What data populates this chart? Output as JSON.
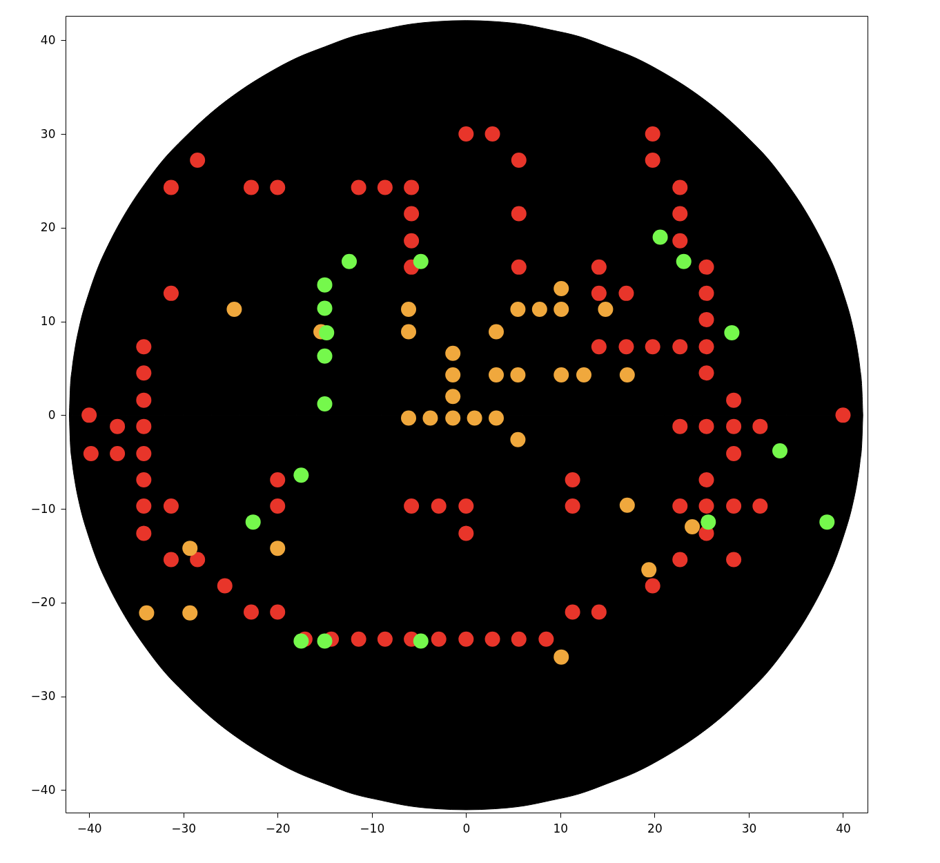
{
  "chart_data": {
    "type": "scatter",
    "marker": "circle",
    "xlim": [
      -42.5,
      42.6
    ],
    "ylim": [
      -42.4,
      42.6
    ],
    "xticks": [
      {
        "value": -40,
        "label": "−40"
      },
      {
        "value": -30,
        "label": "−30"
      },
      {
        "value": -20,
        "label": "−20"
      },
      {
        "value": -10,
        "label": "−10"
      },
      0,
      10,
      20,
      30,
      40
    ],
    "yticks": [
      {
        "value": -40,
        "label": "−40"
      },
      {
        "value": -30,
        "label": "−30"
      },
      {
        "value": -20,
        "label": "−20"
      },
      {
        "value": -10,
        "label": "−10"
      },
      0,
      10,
      20,
      30,
      40
    ],
    "series": [
      {
        "type": "area",
        "marker": "none",
        "color": "#000000",
        "x": [
          -42.1,
          -42.0,
          -41.8,
          -41.5,
          -41,
          -40,
          -39,
          -38,
          -36,
          -34,
          -32,
          -30,
          -27,
          -24,
          -21,
          -18,
          -15,
          -12,
          -9,
          -6,
          -3,
          0,
          3,
          6,
          9,
          12,
          15,
          18,
          21,
          24,
          27,
          30,
          32,
          34,
          36,
          38,
          39,
          40,
          41,
          41.5,
          41.8,
          42.0,
          42.1
        ],
        "values": [
          0,
          2.9,
          5.0,
          7.1,
          9.6,
          13.1,
          15.9,
          18.1,
          21.8,
          24.8,
          27.4,
          29.5,
          32.3,
          34.6,
          36.5,
          38.1,
          39.3,
          40.4,
          41.1,
          41.7,
          42.0,
          42.1,
          42.0,
          41.7,
          41.1,
          40.4,
          39.3,
          38.1,
          36.5,
          34.6,
          32.3,
          29.5,
          27.4,
          24.8,
          21.8,
          18.1,
          15.9,
          13.1,
          9.6,
          7.1,
          5.0,
          2.9,
          0
        ]
      },
      {
        "type": "area",
        "marker": "none",
        "color": "#000000",
        "x": [
          -42.1,
          -42.0,
          -41.8,
          -41.5,
          -41,
          -40,
          -39,
          -38,
          -36,
          -34,
          -32,
          -30,
          -27,
          -24,
          -21,
          -18,
          -15,
          -12,
          -9,
          -6,
          -3,
          0,
          3,
          6,
          9,
          12,
          15,
          18,
          21,
          24,
          27,
          30,
          32,
          34,
          36,
          38,
          39,
          40,
          41,
          41.5,
          41.8,
          42.0,
          42.1
        ],
        "values": [
          0,
          -2.9,
          -5.0,
          -7.1,
          -9.6,
          -13.1,
          -15.9,
          -18.1,
          -21.8,
          -24.8,
          -27.4,
          -29.5,
          -32.3,
          -34.6,
          -36.5,
          -38.1,
          -39.3,
          -40.4,
          -41.1,
          -41.7,
          -42.0,
          -42.1,
          -42.0,
          -41.7,
          -41.1,
          -40.4,
          -39.3,
          -38.1,
          -36.5,
          -34.6,
          -32.3,
          -29.5,
          -27.4,
          -24.8,
          -21.8,
          -18.1,
          -15.9,
          -13.1,
          -9.6,
          -7.1,
          -5.0,
          -2.9,
          0
        ]
      },
      {
        "color": "#e8352a",
        "x": [
          0,
          2.8,
          19.8,
          -28.5,
          5.6,
          19.8,
          -31.3,
          -22.8,
          -20.0,
          -11.4,
          -8.6,
          -5.8,
          22.7,
          -5.8,
          5.6,
          22.7,
          -5.8,
          22.7,
          -5.8,
          5.6,
          14.1,
          25.5,
          -31.3,
          14.1,
          17.0,
          25.5,
          25.5,
          -34.2,
          14.1,
          17.0,
          19.8,
          22.7,
          25.5,
          -34.2,
          25.5,
          -34.2,
          28.4,
          -40,
          40,
          -37.0,
          -34.2,
          22.7,
          25.5,
          28.4,
          31.2,
          -39.8,
          -37.0,
          -34.2,
          28.4,
          -34.2,
          -20.0,
          11.3,
          25.5,
          -34.2,
          -31.3,
          -20.0,
          -5.8,
          -2.9,
          0,
          11.3,
          22.7,
          25.5,
          28.4,
          31.2,
          -34.2,
          0,
          25.5,
          -31.3,
          -28.5,
          22.7,
          28.4,
          -25.6,
          19.8,
          -22.8,
          -20.0,
          11.3,
          14.1,
          -17.1,
          -14.3,
          -11.4,
          -8.6,
          -5.8,
          -2.9,
          0,
          2.8,
          5.6,
          8.5
        ],
        "values": [
          30,
          30,
          30,
          27.2,
          27.2,
          27.2,
          24.3,
          24.3,
          24.3,
          24.3,
          24.3,
          24.3,
          24.3,
          21.5,
          21.5,
          21.5,
          18.6,
          18.6,
          15.8,
          15.8,
          15.8,
          15.8,
          13.0,
          13.0,
          13.0,
          13.0,
          10.2,
          7.3,
          7.3,
          7.3,
          7.3,
          7.3,
          7.3,
          4.5,
          4.5,
          1.6,
          1.6,
          0,
          0,
          -1.2,
          -1.2,
          -1.2,
          -1.2,
          -1.2,
          -1.2,
          -4.1,
          -4.1,
          -4.1,
          -4.1,
          -6.9,
          -6.9,
          -6.9,
          -6.9,
          -9.7,
          -9.7,
          -9.7,
          -9.7,
          -9.7,
          -9.7,
          -9.7,
          -9.7,
          -9.7,
          -9.7,
          -9.7,
          -12.6,
          -12.6,
          -12.6,
          -15.4,
          -15.4,
          -15.4,
          -15.4,
          -18.2,
          -18.2,
          -21.0,
          -21.0,
          -21.0,
          -21.0,
          -23.9,
          -23.9,
          -23.9,
          -23.9,
          -23.9,
          -23.9,
          -23.9,
          -23.9,
          -23.9,
          -23.9
        ]
      },
      {
        "color": "#f0a83d",
        "x": [
          -24.6,
          -15.4,
          -6.1,
          -6.1,
          5.5,
          7.8,
          10.1,
          14.8,
          10.1,
          3.2,
          -1.4,
          -1.4,
          3.2,
          5.5,
          10.1,
          12.5,
          17.1,
          -1.4,
          -6.1,
          -3.8,
          -1.4,
          0.9,
          3.2,
          5.5,
          17.1,
          24.0,
          19.4,
          -29.3,
          -20.0,
          -33.9,
          -29.3,
          10.1
        ],
        "values": [
          11.3,
          8.9,
          11.3,
          8.9,
          11.3,
          11.3,
          11.3,
          11.3,
          13.5,
          8.9,
          6.6,
          4.3,
          4.3,
          4.3,
          4.3,
          4.3,
          4.3,
          2.0,
          -0.3,
          -0.3,
          -0.3,
          -0.3,
          -0.3,
          -2.6,
          -9.6,
          -11.9,
          -16.5,
          -14.2,
          -14.2,
          -21.1,
          -21.1,
          -25.8
        ]
      },
      {
        "color": "#75f84c",
        "x": [
          -15.0,
          -15.0,
          -14.8,
          -15.0,
          -15.0,
          -12.4,
          -4.8,
          20.6,
          23.1,
          28.2,
          33.3,
          25.7,
          38.3,
          -17.5,
          -22.6,
          -17.5,
          -15.0,
          -4.8
        ],
        "values": [
          13.9,
          11.4,
          8.8,
          6.3,
          1.2,
          16.4,
          16.4,
          19.0,
          16.4,
          8.8,
          -3.8,
          -11.4,
          -11.4,
          -6.4,
          -11.4,
          -24.1,
          -24.1,
          -24.1
        ]
      }
    ]
  }
}
